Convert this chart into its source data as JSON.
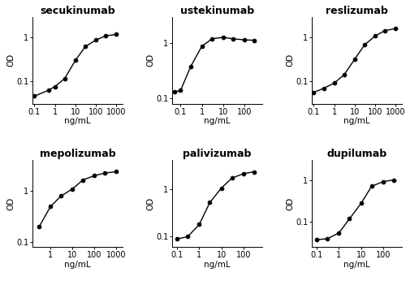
{
  "panels": [
    {
      "title": "secukinumab",
      "x": [
        0.1,
        0.5,
        1,
        3,
        10,
        30,
        100,
        300,
        1000
      ],
      "y": [
        0.045,
        0.062,
        0.075,
        0.115,
        0.3,
        0.62,
        0.88,
        1.1,
        1.18
      ],
      "xlim": [
        0.08,
        2000
      ],
      "ylim": [
        0.03,
        3.0
      ],
      "xticks": [
        0.1,
        1,
        10,
        100,
        1000
      ],
      "yticks": [
        0.1,
        1
      ]
    },
    {
      "title": "ustekinumab",
      "x": [
        0.05,
        0.1,
        0.3,
        1,
        3,
        10,
        30,
        100,
        300
      ],
      "y": [
        0.13,
        0.14,
        0.38,
        0.88,
        1.2,
        1.28,
        1.2,
        1.15,
        1.13
      ],
      "xlim": [
        0.04,
        700
      ],
      "ylim": [
        0.08,
        3.0
      ],
      "xticks": [
        0.1,
        1,
        10,
        100
      ],
      "yticks": [
        0.1,
        1
      ]
    },
    {
      "title": "reslizumab",
      "x": [
        0.1,
        0.3,
        1,
        3,
        10,
        30,
        100,
        300,
        1000
      ],
      "y": [
        0.055,
        0.068,
        0.09,
        0.14,
        0.32,
        0.68,
        1.1,
        1.45,
        1.62
      ],
      "xlim": [
        0.08,
        2000
      ],
      "ylim": [
        0.03,
        3.0
      ],
      "xticks": [
        0.1,
        1,
        10,
        100,
        1000
      ],
      "yticks": [
        0.1,
        1
      ]
    },
    {
      "title": "mepolizumab",
      "x": [
        0.3,
        1,
        3,
        10,
        30,
        100,
        300,
        1000
      ],
      "y": [
        0.2,
        0.5,
        0.8,
        1.1,
        1.65,
        2.0,
        2.25,
        2.4
      ],
      "xlim": [
        0.15,
        2000
      ],
      "ylim": [
        0.08,
        4.0
      ],
      "xticks": [
        1,
        10,
        100,
        1000
      ],
      "yticks": [
        0.1,
        1
      ]
    },
    {
      "title": "palivizumab",
      "x": [
        0.1,
        0.3,
        1,
        3,
        10,
        30,
        100,
        300
      ],
      "y": [
        0.09,
        0.1,
        0.18,
        0.52,
        1.05,
        1.7,
        2.1,
        2.3
      ],
      "xlim": [
        0.06,
        700
      ],
      "ylim": [
        0.06,
        4.0
      ],
      "xticks": [
        0.1,
        1,
        10,
        100
      ],
      "yticks": [
        0.1,
        1
      ]
    },
    {
      "title": "dupilumab",
      "x": [
        0.1,
        0.3,
        1,
        3,
        10,
        30,
        100,
        300
      ],
      "y": [
        0.038,
        0.04,
        0.055,
        0.12,
        0.28,
        0.72,
        0.93,
        1.02
      ],
      "xlim": [
        0.06,
        700
      ],
      "ylim": [
        0.025,
        3.0
      ],
      "xticks": [
        0.1,
        1,
        10,
        100
      ],
      "yticks": [
        0.1,
        1
      ]
    }
  ],
  "line_color": "black",
  "marker": "o",
  "marker_size": 3.5,
  "xlabel": "ng/mL",
  "ylabel": "OD",
  "title_fontsize": 9,
  "label_fontsize": 7.5,
  "tick_fontsize": 7,
  "background_color": "white"
}
